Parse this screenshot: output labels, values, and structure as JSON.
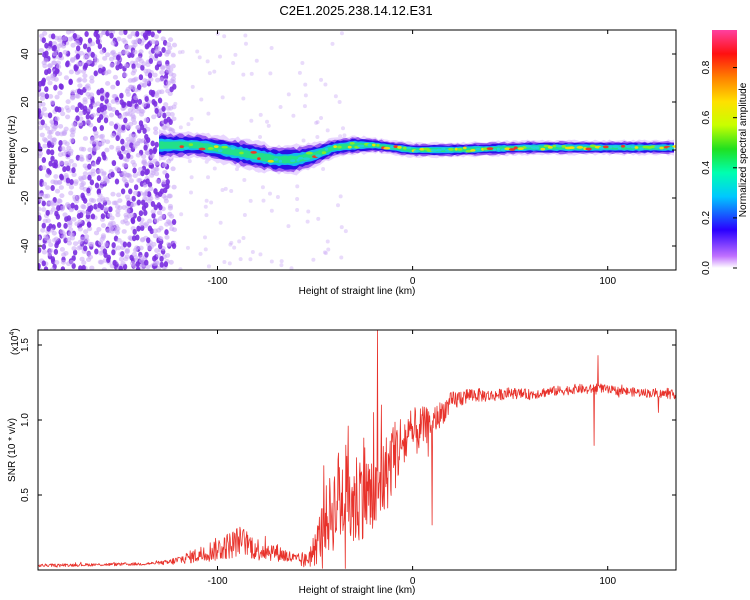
{
  "title": "C2E1.2025.238.14.12.E31",
  "colors": {
    "line": "#e8322b",
    "frame": "#000000",
    "scatter_purple": "#7a2de0",
    "scatter_light": "#c9a6f5"
  },
  "chart_data": [
    {
      "type": "heatmap",
      "name": "spectrogram",
      "xlabel": "Height of straight line (km)",
      "ylabel": "Frequency (Hz)",
      "xlim": [
        -192,
        135
      ],
      "ylim": [
        -50,
        50
      ],
      "xticks": [
        -100,
        0,
        100
      ],
      "xtick_labels": [
        "-100",
        "0",
        "100"
      ],
      "yticks": [
        -40,
        -20,
        0,
        20,
        40
      ],
      "ytick_labels": [
        "-40",
        "-20",
        "0",
        "20",
        "40"
      ],
      "colorbar": {
        "label": "Normalized spectral amplitude",
        "range": [
          0,
          0.95
        ],
        "ticks": [
          0,
          0.2,
          0.4,
          0.6,
          0.8
        ],
        "tick_labels": [
          "0.0",
          "0.2",
          "0.4",
          "0.6",
          "0.8"
        ]
      },
      "noise_region_x": [
        -192,
        -122
      ],
      "signal_band": {
        "x": [
          -130,
          -110,
          -90,
          -70,
          -60,
          -50,
          -40,
          -30,
          -20,
          -10,
          0,
          20,
          60,
          100,
          135
        ],
        "center_hz": [
          2,
          2,
          -1,
          -4,
          -4,
          -2,
          1,
          2,
          2,
          1,
          0,
          0,
          1,
          1,
          1
        ],
        "halfwidth_hz": [
          6,
          5,
          6,
          6,
          6,
          5,
          4,
          4,
          3,
          3,
          3,
          3,
          3,
          3,
          3
        ]
      }
    },
    {
      "type": "line",
      "name": "snr",
      "xlabel": "Height of straight line (km)",
      "ylabel": "SNR (10 * v/v)",
      "yscale_label": "(x10",
      "yscale_exp": "4",
      "xlim": [
        -192,
        135
      ],
      "ylim": [
        0,
        1.6
      ],
      "xticks": [
        -100,
        0,
        100
      ],
      "xtick_labels": [
        "-100",
        "0",
        "100"
      ],
      "yticks": [
        0.5,
        1.0,
        1.5
      ],
      "ytick_labels": [
        "0.5",
        "1.0",
        "1.5"
      ],
      "series": [
        {
          "name": "SNR",
          "envelope": {
            "x": [
              -192,
              -140,
              -125,
              -110,
              -95,
              -88,
              -80,
              -70,
              -60,
              -55,
              -50,
              -45,
              -40,
              -35,
              -30,
              -25,
              -20,
              -15,
              -10,
              -5,
              0,
              5,
              10,
              15,
              20,
              25,
              30,
              40,
              50,
              60,
              70,
              80,
              85,
              90,
              95,
              100,
              110,
              120,
              135
            ],
            "y": [
              0.03,
              0.04,
              0.05,
              0.1,
              0.16,
              0.2,
              0.14,
              0.12,
              0.07,
              0.06,
              0.14,
              0.32,
              0.42,
              0.5,
              0.44,
              0.55,
              0.45,
              0.6,
              0.75,
              0.85,
              0.9,
              0.95,
              0.98,
              1.05,
              1.12,
              1.15,
              1.17,
              1.16,
              1.18,
              1.17,
              1.19,
              1.2,
              1.21,
              1.2,
              1.22,
              1.2,
              1.19,
              1.18,
              1.17
            ]
          },
          "noise_amp": {
            "x": [
              -192,
              -130,
              -115,
              -100,
              -90,
              -80,
              -70,
              -60,
              -55,
              -50,
              -45,
              -40,
              -35,
              -30,
              -20,
              -10,
              0,
              10,
              20,
              30,
              40,
              60,
              100,
              135
            ],
            "y": [
              0.01,
              0.01,
              0.04,
              0.08,
              0.1,
              0.08,
              0.06,
              0.04,
              0.05,
              0.12,
              0.22,
              0.3,
              0.35,
              0.35,
              0.3,
              0.25,
              0.18,
              0.1,
              0.07,
              0.05,
              0.04,
              0.035,
              0.03,
              0.03
            ]
          },
          "spikes": [
            {
              "x": -38,
              "y": 0.78
            },
            {
              "x": -33,
              "y": 0.96
            },
            {
              "x": -25,
              "y": 0.88
            },
            {
              "x": -20,
              "y": 1.05
            },
            {
              "x": -18,
              "y": 1.6
            },
            {
              "x": -16,
              "y": 1.1
            },
            {
              "x": -10,
              "y": 0.95
            },
            {
              "x": -5,
              "y": 0.85
            },
            {
              "x": 10,
              "y": 0.3
            },
            {
              "x": 93,
              "y": 0.83
            },
            {
              "x": 95,
              "y": 1.43
            },
            {
              "x": 126,
              "y": 1.05
            }
          ]
        }
      ]
    }
  ]
}
